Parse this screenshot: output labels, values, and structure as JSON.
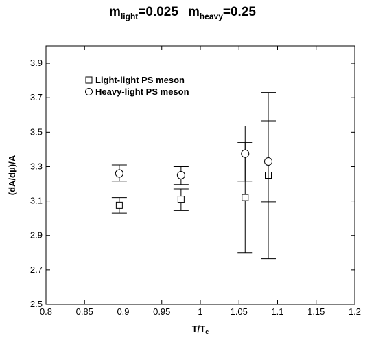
{
  "chart_data": {
    "type": "scatter",
    "title": {
      "m1_main": "m",
      "m1_sub": "light",
      "m1_value": "=0.025",
      "m2_main": "m",
      "m2_sub": "heavy",
      "m2_value": "=0.25"
    },
    "xlabel": {
      "main": "T/T",
      "sub": "c"
    },
    "ylabel": "(dA/dμ)/A",
    "xlim": [
      0.8,
      1.2
    ],
    "ylim": [
      2.5,
      4.0
    ],
    "xticks": [
      0.8,
      0.85,
      0.9,
      0.95,
      1.0,
      1.05,
      1.1,
      1.15,
      1.2
    ],
    "xtick_labels": [
      "0.8",
      "0.85",
      "0.9",
      "0.95",
      "1",
      "1.05",
      "1.1",
      "1.15",
      "1.2"
    ],
    "yticks": [
      2.5,
      2.7,
      2.9,
      3.1,
      3.3,
      3.5,
      3.7,
      3.9
    ],
    "ytick_labels": [
      "2.5",
      "2.7",
      "2.9",
      "3.1",
      "3.3",
      "3.5",
      "3.7",
      "3.9"
    ],
    "grid": false,
    "legend_placement": "top-left",
    "series": [
      {
        "name": "Light-light PS meson",
        "marker": "square",
        "points": [
          {
            "x": 0.895,
            "y": 3.075,
            "ylow": 3.03,
            "yhigh": 3.12
          },
          {
            "x": 0.975,
            "y": 3.11,
            "ylow": 3.045,
            "yhigh": 3.17
          },
          {
            "x": 1.058,
            "y": 3.12,
            "ylow": 2.8,
            "yhigh": 3.44
          },
          {
            "x": 1.088,
            "y": 3.25,
            "ylow": 2.765,
            "yhigh": 3.73
          }
        ]
      },
      {
        "name": "Heavy-light PS meson",
        "marker": "circle",
        "points": [
          {
            "x": 0.895,
            "y": 3.26,
            "ylow": 3.215,
            "yhigh": 3.31
          },
          {
            "x": 0.975,
            "y": 3.25,
            "ylow": 3.195,
            "yhigh": 3.3
          },
          {
            "x": 1.058,
            "y": 3.375,
            "ylow": 3.215,
            "yhigh": 3.535
          },
          {
            "x": 1.088,
            "y": 3.33,
            "ylow": 3.095,
            "yhigh": 3.565
          }
        ]
      }
    ]
  }
}
